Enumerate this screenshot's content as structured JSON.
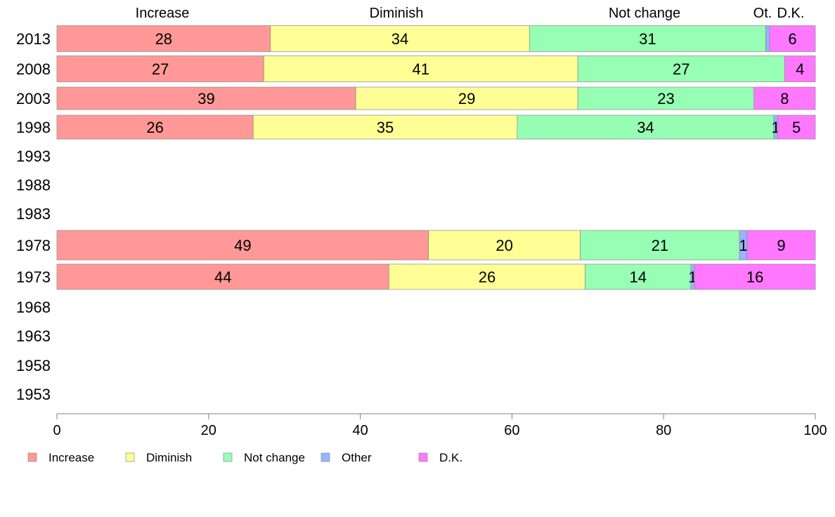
{
  "chart_data": {
    "type": "bar",
    "orientation": "horizontal",
    "stacked": true,
    "categories": [
      "2013",
      "2008",
      "2003",
      "1998",
      "1993",
      "1988",
      "1983",
      "1978",
      "1973",
      "1968",
      "1963",
      "1958",
      "1953"
    ],
    "series": [
      {
        "name": "Increase",
        "color": "#ff9896",
        "values": [
          28,
          27,
          39,
          26,
          null,
          null,
          null,
          49,
          44,
          null,
          null,
          null,
          null
        ]
      },
      {
        "name": "Diminish",
        "color": "#ffff96",
        "values": [
          34,
          41,
          29,
          35,
          null,
          null,
          null,
          20,
          26,
          null,
          null,
          null,
          null
        ]
      },
      {
        "name": "Not change",
        "color": "#96ffb4",
        "values": [
          31,
          27,
          23,
          34,
          null,
          null,
          null,
          21,
          14,
          null,
          null,
          null,
          null
        ]
      },
      {
        "name": "Other",
        "color": "#96b4ff",
        "values": [
          0.5,
          0,
          0,
          0.5,
          null,
          null,
          null,
          1,
          0.5,
          null,
          null,
          null,
          null
        ]
      },
      {
        "name": "D.K.",
        "color": "#ff78ff",
        "values": [
          6,
          4,
          8,
          5,
          null,
          null,
          null,
          9,
          16,
          null,
          null,
          null,
          null
        ]
      }
    ],
    "data_labels": [
      [
        "28",
        "34",
        "31",
        "",
        "6"
      ],
      [
        "27",
        "41",
        "27",
        "",
        "4"
      ],
      [
        "39",
        "29",
        "23",
        "",
        "8"
      ],
      [
        "26",
        "35",
        "34",
        "1",
        "5"
      ],
      null,
      null,
      null,
      [
        "49",
        "20",
        "21",
        "1",
        "9"
      ],
      [
        "44",
        "26",
        "14",
        "1",
        "16"
      ],
      null,
      null,
      null,
      null
    ],
    "column_headers": [
      "Increase",
      "Diminish",
      "Not change",
      "Ot.",
      "D.K."
    ],
    "x_ticks": [
      "0",
      "20",
      "40",
      "60",
      "80",
      "100"
    ],
    "xlim": [
      0,
      100
    ],
    "grid": false,
    "legend": {
      "position": "bottom",
      "entries": [
        "Increase",
        "Diminish",
        "Not change",
        "Other",
        "D.K."
      ]
    }
  }
}
